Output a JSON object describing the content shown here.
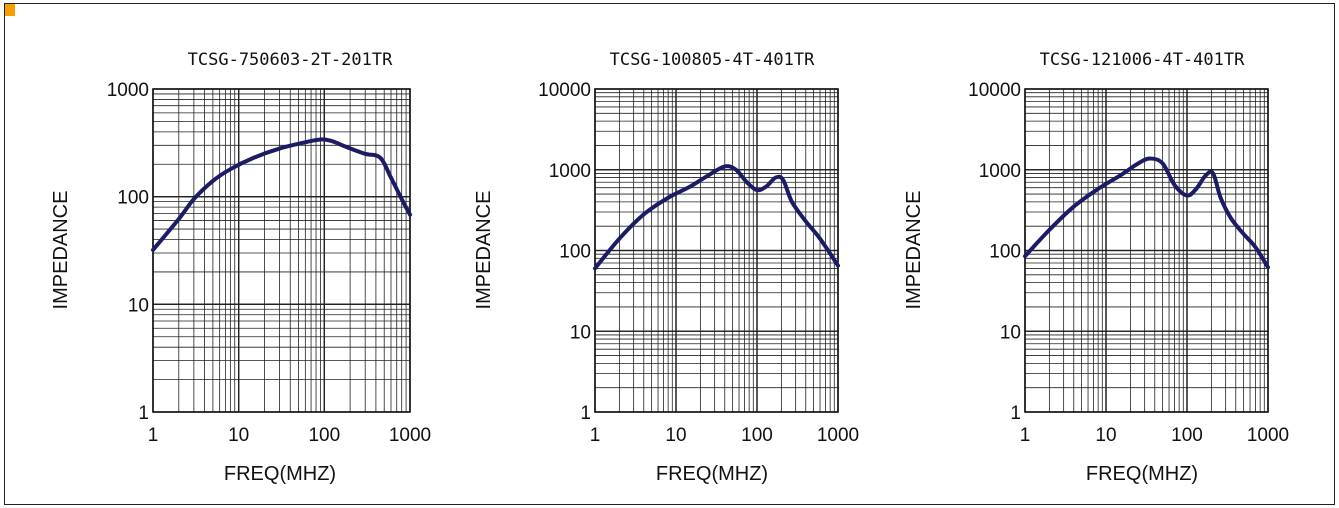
{
  "accent_color": "#f5a000",
  "curve_color": "#1c1c66",
  "chart_data": [
    {
      "type": "line",
      "title": "TCSG-750603-2T-201TR",
      "xlabel": "FREQ(MHZ)",
      "ylabel": "IMPEDANCE",
      "x_scale": "log",
      "y_scale": "log",
      "xlim": [
        1,
        1000
      ],
      "ylim": [
        1,
        1000
      ],
      "x_ticks": [
        "1",
        "10",
        "100",
        "1000"
      ],
      "y_ticks": [
        "1",
        "10",
        "100",
        "1000"
      ],
      "grid": true,
      "series": [
        {
          "x": [
            1,
            2,
            3,
            5,
            8,
            15,
            30,
            60,
            90,
            120,
            180,
            300,
            450,
            600,
            800,
            1000
          ],
          "y": [
            32,
            62,
            95,
            140,
            180,
            230,
            280,
            320,
            340,
            330,
            290,
            250,
            230,
            150,
            95,
            68
          ]
        }
      ]
    },
    {
      "type": "line",
      "title": "TCSG-100805-4T-401TR",
      "xlabel": "FREQ(MHZ)",
      "ylabel": "IMPEDANCE",
      "x_scale": "log",
      "y_scale": "log",
      "xlim": [
        1,
        1000
      ],
      "ylim": [
        1,
        10000
      ],
      "x_ticks": [
        "1",
        "10",
        "100",
        "1000"
      ],
      "y_ticks": [
        "1",
        "10",
        "100",
        "1000",
        "10000"
      ],
      "grid": true,
      "series": [
        {
          "x": [
            1,
            2,
            4,
            8,
            15,
            25,
            40,
            55,
            75,
            100,
            130,
            170,
            210,
            270,
            400,
            600,
            1000
          ],
          "y": [
            60,
            140,
            280,
            450,
            620,
            850,
            1100,
            1000,
            700,
            560,
            620,
            800,
            750,
            400,
            230,
            140,
            65
          ]
        }
      ]
    },
    {
      "type": "line",
      "title": "TCSG-121006-4T-401TR",
      "xlabel": "FREQ(MHZ)",
      "ylabel": "IMPEDANCE",
      "x_scale": "log",
      "y_scale": "log",
      "xlim": [
        1,
        1000
      ],
      "ylim": [
        1,
        10000
      ],
      "x_ticks": [
        "1",
        "10",
        "100",
        "1000"
      ],
      "y_ticks": [
        "1",
        "10",
        "100",
        "1000",
        "10000"
      ],
      "grid": true,
      "series": [
        {
          "x": [
            1,
            2,
            4,
            8,
            15,
            25,
            35,
            50,
            70,
            100,
            130,
            170,
            210,
            260,
            350,
            500,
            700,
            1000
          ],
          "y": [
            85,
            180,
            350,
            580,
            850,
            1200,
            1380,
            1200,
            650,
            480,
            580,
            850,
            900,
            450,
            250,
            160,
            110,
            62
          ]
        }
      ]
    }
  ]
}
